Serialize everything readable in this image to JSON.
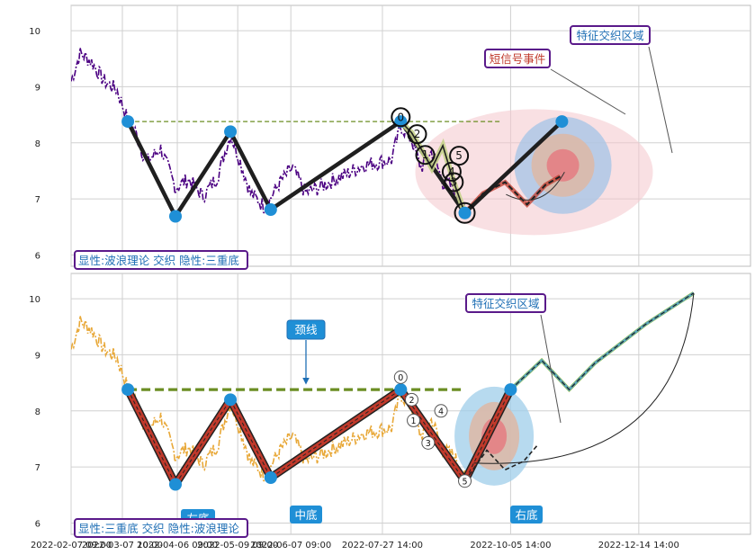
{
  "chart_data": [
    {
      "type": "line",
      "title": "",
      "xlabel": "",
      "ylabel": "",
      "ylim": [
        5.8,
        10.45
      ],
      "grid": true,
      "yticks": [
        6,
        7,
        8,
        9,
        10
      ],
      "xlim": [
        "2022-02-07",
        "2023-02-13"
      ],
      "price_anchors": {
        "x": [
          "2022-02-07",
          "2022-02-12",
          "2022-02-18",
          "2022-02-25",
          "2022-03-04",
          "2022-03-10",
          "2022-03-14",
          "2022-03-20",
          "2022-03-28",
          "2022-04-05",
          "2022-04-12",
          "2022-04-20",
          "2022-04-28",
          "2022-05-05",
          "2022-05-10",
          "2022-05-16",
          "2022-05-24",
          "2022-06-01",
          "2022-06-08",
          "2022-06-15",
          "2022-06-22",
          "2022-07-01",
          "2022-07-08",
          "2022-07-16",
          "2022-07-24",
          "2022-08-01",
          "2022-08-06",
          "2022-08-12",
          "2022-08-17",
          "2022-08-23",
          "2022-08-29",
          "2022-09-04",
          "2022-09-10"
        ],
        "y": [
          9.1,
          9.6,
          9.45,
          9.1,
          8.95,
          8.4,
          8.2,
          7.65,
          7.9,
          7.2,
          7.35,
          7.05,
          7.4,
          8.15,
          7.7,
          7.1,
          6.85,
          7.3,
          7.55,
          7.1,
          7.2,
          7.35,
          7.45,
          7.6,
          7.65,
          7.7,
          8.3,
          8.05,
          7.55,
          7.85,
          7.3,
          7.2,
          6.8
        ]
      },
      "wave_points": {
        "x": [
          "2022-03-10",
          "2022-04-05",
          "2022-05-05",
          "2022-05-27",
          "2022-08-06",
          "2022-09-10",
          "2022-11-02"
        ],
        "y": [
          8.38,
          6.69,
          8.2,
          6.81,
          8.38,
          6.75,
          8.38
        ]
      },
      "sub_wave": {
        "x": [
          "2022-08-06",
          "2022-08-12",
          "2022-08-17",
          "2022-08-23",
          "2022-08-29",
          "2022-09-04",
          "2022-09-10"
        ],
        "y": [
          8.38,
          8.18,
          7.9,
          7.55,
          7.95,
          7.3,
          6.75
        ]
      },
      "sub_labels": [
        "0",
        "2",
        "1",
        "4",
        "5",
        "3"
      ],
      "forecast": {
        "x": [
          "2022-09-10",
          "2022-09-20",
          "2022-10-02",
          "2022-10-14",
          "2022-10-24",
          "2022-11-01"
        ],
        "y": [
          6.75,
          7.1,
          7.3,
          6.9,
          7.25,
          7.4
        ]
      },
      "neckline": {
        "y": 8.38,
        "x_start": "2022-03-10",
        "x_end": "2022-09-30"
      },
      "ellipse_center": {
        "x": "2022-10-08",
        "y": 7.35
      },
      "inner_rings_center": {
        "x": "2022-10-09",
        "y": 7.6
      },
      "annotations": [
        "特征交织区域",
        "短信号事件"
      ],
      "legend_text": "显性:波浪理论 交织 隐性:三重底"
    },
    {
      "type": "line",
      "title": "",
      "xlabel": "",
      "ylabel": "",
      "ylim": [
        5.8,
        10.45
      ],
      "grid": true,
      "yticks": [
        6,
        7,
        8,
        9,
        10
      ],
      "xtick_labels": [
        "2022-02-07 09:00",
        "2022-03-07 10:00",
        "2022-04-06 09:00",
        "2022-05-09 09:00",
        "2022-06-07 09:00",
        "2022-07-27 14:00",
        "2022-10-05 14:00",
        "2022-12-14 14:00"
      ],
      "pattern_points": {
        "x": [
          "2022-03-10",
          "2022-04-05",
          "2022-05-05",
          "2022-05-27",
          "2022-08-06",
          "2022-09-10",
          "2022-10-05"
        ],
        "y": [
          8.38,
          6.69,
          8.2,
          6.81,
          8.38,
          6.75,
          8.38
        ]
      },
      "sub_labels": [
        "0",
        "2",
        "1",
        "4",
        "3",
        "5"
      ],
      "neckline": {
        "y": 8.38,
        "x_start": "2022-03-10",
        "x_end": "2022-09-08"
      },
      "forecast": {
        "x": [
          "2022-10-05",
          "2022-10-22",
          "2022-11-06",
          "2022-11-20",
          "2022-12-18",
          "2023-01-13"
        ],
        "y": [
          8.38,
          8.9,
          8.38,
          8.85,
          9.55,
          10.1
        ]
      },
      "forecast_alt": {
        "x": [
          "2022-09-10",
          "2022-09-22",
          "2022-10-02",
          "2022-10-12",
          "2022-10-20"
        ],
        "y": [
          6.75,
          7.3,
          6.95,
          7.1,
          7.4
        ]
      },
      "ellipse_center": {
        "x": "2022-09-26",
        "y": 7.55
      },
      "labels": {
        "neck": "颈线",
        "left": "左底",
        "middle": "中底",
        "right": "右底",
        "feature": "特征交织区域"
      },
      "legend_text": "显性:三重底 交织 隐性:波浪理论"
    }
  ]
}
